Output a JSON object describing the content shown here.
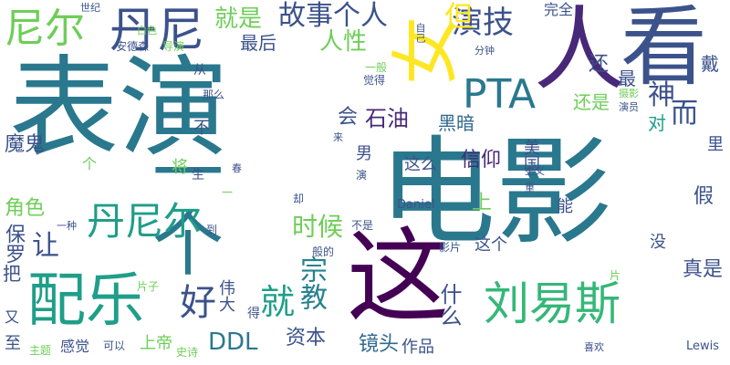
{
  "words": [
    {
      "text": "表演",
      "color": "#2a788e"
    },
    {
      "text": "电影",
      "color": "#2a788e"
    },
    {
      "text": "这",
      "color": "#440154"
    },
    {
      "text": "一个",
      "color": "#2a788e"
    },
    {
      "text": "看",
      "color": "#3b528b"
    },
    {
      "text": "女",
      "color": "#fde725"
    },
    {
      "text": "人",
      "color": "#482878"
    },
    {
      "text": "配乐",
      "color": "#1f9e89"
    },
    {
      "text": "刘易斯",
      "color": "#35b779"
    },
    {
      "text": "丹尼",
      "color": "#3b528b"
    },
    {
      "text": "尼尔",
      "color": "#6ece58"
    },
    {
      "text": "PTA",
      "color": "#2a788e"
    },
    {
      "text": "丹尼尔",
      "color": "#1f9e89"
    },
    {
      "text": "好",
      "color": "#3b528b"
    },
    {
      "text": "就",
      "color": "#1f9e89"
    },
    {
      "text": "演技",
      "color": "#3b528b"
    },
    {
      "text": "个人",
      "color": "#3b528b"
    },
    {
      "text": "故事",
      "color": "#3b528b"
    },
    {
      "text": "就是",
      "color": "#6ece58"
    },
    {
      "text": "人性",
      "color": "#6ece58"
    },
    {
      "text": "最后",
      "color": "#3b528b"
    },
    {
      "text": "但",
      "color": "#fde725"
    },
    {
      "text": "石油",
      "color": "#482878"
    },
    {
      "text": "黑暗",
      "color": "#31688e"
    },
    {
      "text": "神",
      "color": "#3b528b"
    },
    {
      "text": "而",
      "color": "#3b528b"
    },
    {
      "text": "时候",
      "color": "#6ece58"
    },
    {
      "text": "宗教",
      "color": "#26828e"
    },
    {
      "text": "DDL",
      "color": "#2a788e"
    },
    {
      "text": "资本",
      "color": "#3b528b"
    },
    {
      "text": "镜头",
      "color": "#31688e"
    },
    {
      "text": "作品",
      "color": "#3b528b"
    },
    {
      "text": "什么",
      "color": "#3b528b"
    },
    {
      "text": "魔鬼",
      "color": "#3b528b"
    },
    {
      "text": "角色",
      "color": "#6ece58"
    },
    {
      "text": "让",
      "color": "#3b528b"
    },
    {
      "text": "保罗",
      "color": "#3b528b"
    },
    {
      "text": "会",
      "color": "#3b528b"
    },
    {
      "text": "信仰",
      "color": "#482878"
    },
    {
      "text": "这么",
      "color": "#3b528b"
    },
    {
      "text": "男",
      "color": "#3b528b"
    },
    {
      "text": "美国",
      "color": "#3b528b"
    },
    {
      "text": "这个",
      "color": "#3b528b"
    },
    {
      "text": "能",
      "color": "#3b528b"
    },
    {
      "text": "上",
      "color": "#6ece58"
    },
    {
      "text": "还是",
      "color": "#6ece58"
    },
    {
      "text": "最",
      "color": "#3b528b"
    },
    {
      "text": "还",
      "color": "#3b528b"
    },
    {
      "text": "戴",
      "color": "#3b528b"
    },
    {
      "text": "对",
      "color": "#1f9e89"
    },
    {
      "text": "里",
      "color": "#3b528b"
    },
    {
      "text": "假",
      "color": "#3b528b"
    },
    {
      "text": "真是",
      "color": "#3b528b"
    },
    {
      "text": "没",
      "color": "#3b528b"
    },
    {
      "text": "完全",
      "color": "#3b528b"
    },
    {
      "text": "上帝",
      "color": "#6ece58"
    },
    {
      "text": "感觉",
      "color": "#3b528b"
    },
    {
      "text": "伟大",
      "color": "#3b528b"
    },
    {
      "text": "不",
      "color": "#3b528b"
    },
    {
      "text": "将",
      "color": "#6ece58"
    },
    {
      "text": "个",
      "color": "#6ece58"
    },
    {
      "text": "把",
      "color": "#3b528b"
    },
    {
      "text": "至",
      "color": "#3b528b"
    },
    {
      "text": "又",
      "color": "#3b528b"
    },
    {
      "text": "主题",
      "color": "#6ece58"
    },
    {
      "text": "可以",
      "color": "#3b528b"
    },
    {
      "text": "史诗",
      "color": "#6ece58"
    },
    {
      "text": "得",
      "color": "#3b528b"
    },
    {
      "text": "片子",
      "color": "#6ece58"
    },
    {
      "text": "Daniel",
      "color": "#3b528b"
    },
    {
      "text": "Lewis",
      "color": "#3b528b"
    },
    {
      "text": "喜欢",
      "color": "#3b528b"
    },
    {
      "text": "片",
      "color": "#6ece58"
    },
    {
      "text": "影片",
      "color": "#3b528b"
    },
    {
      "text": "不是",
      "color": "#3b528b"
    },
    {
      "text": "般的",
      "color": "#3b528b"
    },
    {
      "text": "到",
      "color": "#3b528b"
    },
    {
      "text": "却",
      "color": "#3b528b"
    },
    {
      "text": "一种",
      "color": "#3b528b"
    },
    {
      "text": "春",
      "color": "#3b528b"
    },
    {
      "text": "演",
      "color": "#3b528b"
    },
    {
      "text": "世纪",
      "color": "#3b528b"
    },
    {
      "text": "安德森",
      "color": "#3b528b"
    },
    {
      "text": "导演",
      "color": "#6ece58"
    },
    {
      "text": "从",
      "color": "#3b528b"
    },
    {
      "text": "那么",
      "color": "#3b528b"
    },
    {
      "text": "一般",
      "color": "#6ece58"
    },
    {
      "text": "觉得",
      "color": "#3b528b"
    },
    {
      "text": "自己",
      "color": "#3b528b"
    },
    {
      "text": "分钟",
      "color": "#3b528b"
    },
    {
      "text": "摄影",
      "color": "#6ece58"
    },
    {
      "text": "演员",
      "color": "#3b528b"
    },
    {
      "text": "主义",
      "color": "#3b528b"
    },
    {
      "text": "重",
      "color": "#3b528b"
    },
    {
      "text": "一",
      "color": "#6ece58"
    },
    {
      "text": "来",
      "color": "#3b528b"
    },
    {
      "text": "生",
      "color": "#3b528b"
    },
    {
      "text": "白色",
      "color": "#6ece58"
    }
  ]
}
